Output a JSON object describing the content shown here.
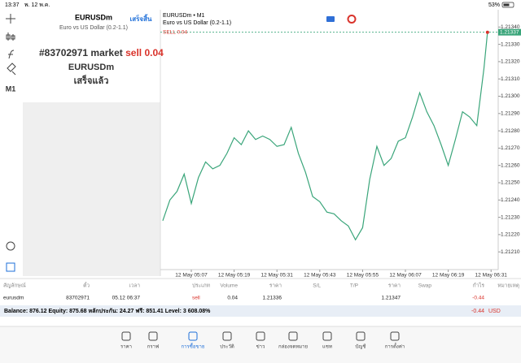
{
  "status_bar": {
    "time": "13:37",
    "date": "พ. 12 พ.ค.",
    "battery": "53%"
  },
  "toolbar": {
    "timeframe": "M1"
  },
  "order_panel": {
    "symbol": "EURUSDm",
    "status": "เสร็จสิ้น",
    "description": "Euro vs US Dollar (0.2-1.1)",
    "order_prefix": "#83702971 market",
    "order_action": "sell 0.04",
    "order_symbol": "EURUSDm",
    "result": "เสร็จแล้ว"
  },
  "chart_data": {
    "type": "line",
    "title": "EURUSDm • M1",
    "subtitle": "Euro vs US Dollar (0.2-1.1)",
    "order_label": "SELL 0.04",
    "current_price": 1.21337,
    "current_price_label": "1.21337",
    "x": [
      -1,
      1,
      3,
      5,
      7,
      9,
      11,
      13,
      15,
      17,
      19,
      21,
      23,
      25,
      27,
      29,
      31,
      33,
      35,
      37,
      39,
      41,
      43,
      45,
      47,
      49,
      51,
      53,
      55,
      57,
      59,
      61,
      63,
      65,
      67,
      69,
      71,
      73,
      75,
      77,
      79,
      81,
      83,
      85,
      87,
      89,
      90
    ],
    "series": [
      {
        "name": "EURUSDm",
        "color": "#3aa57a",
        "values": [
          1.21228,
          1.2124,
          1.21245,
          1.21255,
          1.21238,
          1.21253,
          1.21262,
          1.21258,
          1.2126,
          1.21267,
          1.21276,
          1.21272,
          1.2128,
          1.21275,
          1.21277,
          1.21275,
          1.21271,
          1.21272,
          1.21282,
          1.21267,
          1.21256,
          1.21242,
          1.21239,
          1.21233,
          1.21232,
          1.21228,
          1.21225,
          1.21217,
          1.21224,
          1.21252,
          1.21271,
          1.2126,
          1.21264,
          1.21274,
          1.21276,
          1.21288,
          1.21302,
          1.21291,
          1.21283,
          1.21272,
          1.2126,
          1.21275,
          1.21291,
          1.21288,
          1.21283,
          1.21316,
          1.21337
        ]
      }
    ],
    "xlim": [
      -1.67,
      93
    ],
    "ylim": [
      1.21196,
      1.2135
    ],
    "xticks": [
      {
        "value": 7,
        "label": "12 May 05:07"
      },
      {
        "value": 19,
        "label": "12 May 05:19"
      },
      {
        "value": 31,
        "label": "12 May 05:31"
      },
      {
        "value": 43,
        "label": "12 May 05:43"
      },
      {
        "value": 55,
        "label": "12 May 05:55"
      },
      {
        "value": 67,
        "label": "12 May 06:07"
      },
      {
        "value": 79,
        "label": "12 May 06:19"
      },
      {
        "value": 91,
        "label": "12 May 06:31"
      }
    ],
    "yticks": [
      {
        "value": 1.2134,
        "label": "1.21340"
      },
      {
        "value": 1.2133,
        "label": "1.21330"
      },
      {
        "value": 1.2132,
        "label": "1.21320"
      },
      {
        "value": 1.2131,
        "label": "1.21310"
      },
      {
        "value": 1.213,
        "label": "1.21300"
      },
      {
        "value": 1.2129,
        "label": "1.21290"
      },
      {
        "value": 1.2128,
        "label": "1.21280"
      },
      {
        "value": 1.2127,
        "label": "1.21270"
      },
      {
        "value": 1.2126,
        "label": "1.21260"
      },
      {
        "value": 1.2125,
        "label": "1.21250"
      },
      {
        "value": 1.2124,
        "label": "1.21240"
      },
      {
        "value": 1.2123,
        "label": "1.21230"
      },
      {
        "value": 1.2122,
        "label": "1.21220"
      },
      {
        "value": 1.2121,
        "label": "1.21210"
      }
    ]
  },
  "table": {
    "headers": [
      "สัญลักษณ์",
      "ตั๋ว",
      "เวลา",
      "ประเภท",
      "Volume",
      "ราคา",
      "S/L",
      "T/P",
      "ราคา",
      "Swap",
      "กำไร",
      "หมายเหตุ"
    ],
    "rows": [
      [
        "eurusdm",
        "83702971",
        "05.12 06:37",
        "sell",
        "0.04",
        "1.21336",
        null,
        null,
        "1.21347",
        null,
        "-0.44",
        null
      ]
    ]
  },
  "summary": {
    "text": "Balance: 876.12 Equity: 875.68 หลักประกัน: 24.27 ฟรี: 851.41 Level: 3 608.08%",
    "profit": "-0.44",
    "currency": "USD"
  },
  "nav": [
    "ราคา",
    "กราฟ",
    "การซื้อขาย",
    "ประวัติ",
    "ข่าว",
    "กล่องจดหมาย",
    "แชท",
    "บัญชี",
    "การตั้งค่า"
  ]
}
